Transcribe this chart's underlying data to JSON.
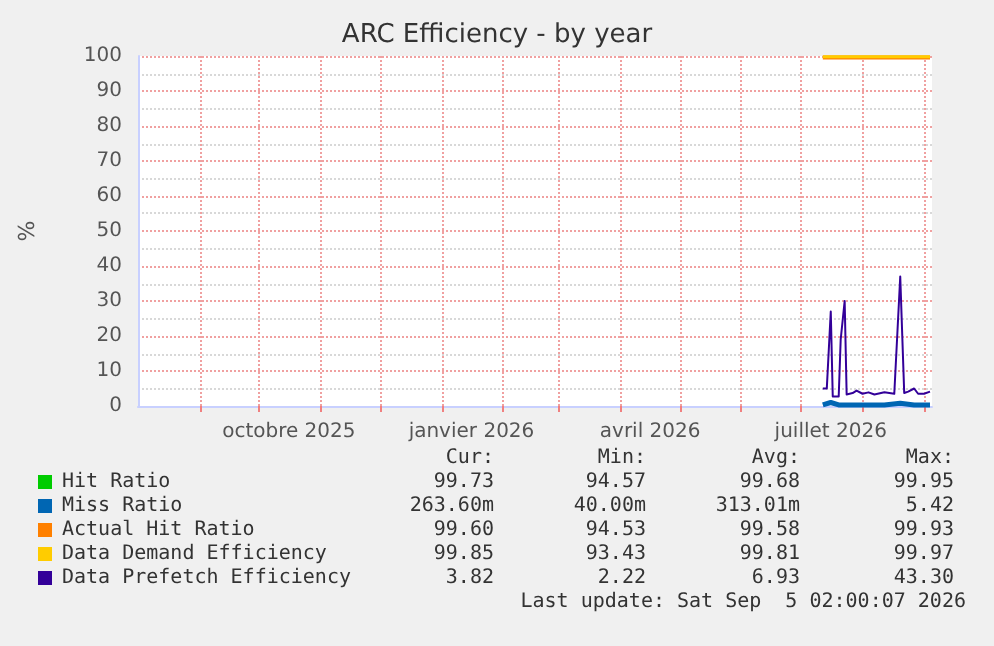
{
  "chart_data": {
    "type": "line",
    "title": "ARC Efficiency - by year",
    "ylabel": "%",
    "xlim": [
      "2025-08-01",
      "2026-09-05"
    ],
    "xticks": [
      {
        "value": "2025-09-01",
        "label": null
      },
      {
        "value": "2025-10-01",
        "label": null
      },
      {
        "value": "2025-10-16",
        "label": "octobre 2025"
      },
      {
        "value": "2025-11-01",
        "label": null
      },
      {
        "value": "2025-12-01",
        "label": null
      },
      {
        "value": "2026-01-01",
        "label": null
      },
      {
        "value": "2026-01-16",
        "label": "janvier 2026"
      },
      {
        "value": "2026-02-01",
        "label": null
      },
      {
        "value": "2026-03-01",
        "label": null
      },
      {
        "value": "2026-04-01",
        "label": null
      },
      {
        "value": "2026-04-16",
        "label": "avril 2026"
      },
      {
        "value": "2026-05-01",
        "label": null
      },
      {
        "value": "2026-06-01",
        "label": null
      },
      {
        "value": "2026-07-01",
        "label": null
      },
      {
        "value": "2026-07-16",
        "label": "juillet 2026"
      },
      {
        "value": "2026-08-01",
        "label": null
      },
      {
        "value": "2026-09-01",
        "label": null
      }
    ],
    "ylim": [
      0,
      100
    ],
    "yticks": [
      0,
      10,
      20,
      30,
      40,
      50,
      60,
      70,
      80,
      90,
      100
    ],
    "grid": true,
    "legend": "bottom",
    "marker": "none",
    "line_style": "solid",
    "series": [
      {
        "name": "Hit Ratio",
        "color": "#00cc00"
      },
      {
        "name": "Miss Ratio",
        "color": "#0066b3",
        "x": [
          "2026-07-12",
          "2026-07-16",
          "2026-07-20",
          "2026-07-24",
          "2026-07-29",
          "2026-08-04",
          "2026-08-12",
          "2026-08-20",
          "2026-08-27",
          "2026-09-04"
        ],
        "values": [
          0.3,
          1,
          0.3,
          0.3,
          0.3,
          0.3,
          0.3,
          0.8,
          0.3,
          0.3
        ]
      },
      {
        "name": "Actual Hit Ratio",
        "color": "#ff8000",
        "x": [
          "2026-07-12",
          "2026-07-16",
          "2026-07-20",
          "2026-07-24",
          "2026-07-29",
          "2026-08-04",
          "2026-08-12",
          "2026-08-20",
          "2026-08-27",
          "2026-09-04"
        ],
        "values": [
          99.6,
          99.6,
          99.6,
          99.6,
          99.6,
          99.6,
          99.6,
          99.6,
          99.6,
          99.6
        ]
      },
      {
        "name": "Data Demand Efficiency",
        "color": "#ffcc00",
        "x": [
          "2026-07-12",
          "2026-07-16",
          "2026-07-20",
          "2026-07-24",
          "2026-07-29",
          "2026-08-04",
          "2026-08-12",
          "2026-08-20",
          "2026-08-27",
          "2026-09-04"
        ],
        "values": [
          99.8,
          99.8,
          99.8,
          99.8,
          99.8,
          99.8,
          99.8,
          99.8,
          99.8,
          99.8
        ]
      },
      {
        "name": "Data Prefetch Efficiency",
        "color": "#330099",
        "x": [
          "2026-07-12",
          "2026-07-14",
          "2026-07-16",
          "2026-07-17",
          "2026-07-20",
          "2026-07-21",
          "2026-07-23",
          "2026-07-24",
          "2026-07-27",
          "2026-07-29",
          "2026-08-01",
          "2026-08-04",
          "2026-08-07",
          "2026-08-12",
          "2026-08-17",
          "2026-08-20",
          "2026-08-22",
          "2026-08-24",
          "2026-08-27",
          "2026-08-29",
          "2026-09-01",
          "2026-09-04"
        ],
        "values": [
          5,
          5,
          27,
          2.7,
          2.7,
          19,
          30,
          3.3,
          3.7,
          4.4,
          3.5,
          3.9,
          3.3,
          3.9,
          3.5,
          37,
          3.7,
          4.1,
          5,
          3.5,
          3.5,
          4.1
        ]
      }
    ],
    "annotations": [
      "Cur:",
      "Min:",
      "Avg:",
      "Max:",
      "99.73",
      "94.57",
      "99.68",
      "99.95",
      "263.60m",
      "40.00m",
      "313.01m",
      "5.42",
      "99.60",
      "94.53",
      "99.58",
      "99.93",
      "99.85",
      "93.43",
      "99.81",
      "99.97",
      "3.82",
      "2.22",
      "6.93",
      "43.30",
      "Last update: Sat Sep  5 02:00:07 2026"
    ]
  }
}
